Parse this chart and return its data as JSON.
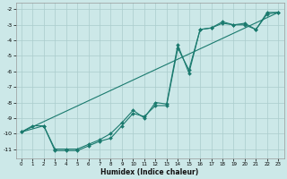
{
  "xlabel": "Humidex (Indice chaleur)",
  "background_color": "#cce8e8",
  "grid_color": "#aacccc",
  "line_color": "#1a7a6e",
  "xlim": [
    -0.5,
    23.5
  ],
  "ylim": [
    -11.6,
    -1.6
  ],
  "xticks": [
    0,
    1,
    2,
    3,
    4,
    5,
    6,
    7,
    8,
    9,
    10,
    11,
    12,
    13,
    14,
    15,
    16,
    17,
    18,
    19,
    20,
    21,
    22,
    23
  ],
  "yticks": [
    -2,
    -3,
    -4,
    -5,
    -6,
    -7,
    -8,
    -9,
    -10,
    -11
  ],
  "line1_x": [
    0,
    1,
    2,
    3,
    4,
    5,
    6,
    7,
    8,
    9,
    10,
    11,
    12,
    13,
    14,
    15,
    16,
    17,
    18,
    19,
    20,
    21,
    22,
    23
  ],
  "line1_y": [
    -9.9,
    -9.5,
    -9.5,
    -11.1,
    -11.1,
    -11.1,
    -10.8,
    -10.5,
    -10.3,
    -9.5,
    -8.7,
    -8.9,
    -8.2,
    -8.2,
    -4.5,
    -5.9,
    -3.3,
    -3.2,
    -2.8,
    -3.0,
    -3.0,
    -3.3,
    -2.3,
    -2.2
  ],
  "line2_x": [
    0,
    2,
    3,
    4,
    5,
    6,
    7,
    8,
    9,
    10,
    11,
    12,
    13,
    14,
    15,
    16,
    17,
    18,
    19,
    20,
    21,
    22,
    23
  ],
  "line2_y": [
    -9.9,
    -9.5,
    -11.0,
    -11.0,
    -11.0,
    -10.7,
    -10.4,
    -10.0,
    -9.3,
    -8.5,
    -9.0,
    -8.0,
    -8.1,
    -4.3,
    -6.1,
    -3.3,
    -3.2,
    -2.9,
    -3.0,
    -2.9,
    -3.3,
    -2.2,
    -2.2
  ],
  "line3_x": [
    0,
    23
  ],
  "line3_y": [
    -9.9,
    -2.2
  ]
}
